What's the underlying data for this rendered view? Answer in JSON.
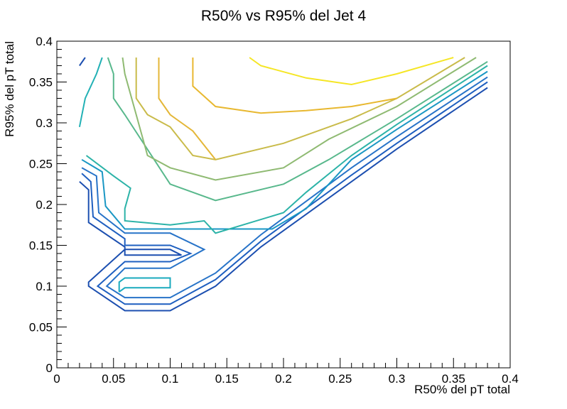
{
  "chart_data": {
    "type": "contour",
    "title": "R50% vs R95% del Jet 4",
    "xlabel": "R50% del pT total",
    "ylabel": "R95% del pT total",
    "xlim": [
      0,
      0.4
    ],
    "ylim": [
      0,
      0.4
    ],
    "x_ticks": [
      "0",
      "0.05",
      "0.1",
      "0.15",
      "0.2",
      "0.25",
      "0.3",
      "0.35",
      "0.4"
    ],
    "y_ticks": [
      "0",
      "0.05",
      "0.1",
      "0.15",
      "0.2",
      "0.25",
      "0.3",
      "0.35",
      "0.4"
    ],
    "grid": false,
    "legend": "none",
    "contours": [
      {
        "color": "#1c4fb0",
        "points": [
          [
            0.02,
            0.37
          ],
          [
            0.025,
            0.38
          ],
          [
            0.02,
            0.37
          ]
        ]
      },
      {
        "color": "#1c4fb0",
        "points": [
          [
            0.02,
            0.228
          ],
          [
            0.028,
            0.218
          ],
          [
            0.028,
            0.178
          ],
          [
            0.06,
            0.148
          ],
          [
            0.06,
            0.138
          ],
          [
            0.1,
            0.138
          ],
          [
            0.11,
            0.138
          ],
          [
            0.1,
            0.145
          ],
          [
            0.06,
            0.145
          ],
          [
            0.028,
            0.105
          ],
          [
            0.028,
            0.1
          ],
          [
            0.06,
            0.07
          ],
          [
            0.1,
            0.07
          ],
          [
            0.14,
            0.1
          ],
          [
            0.18,
            0.148
          ],
          [
            0.26,
            0.228
          ],
          [
            0.3,
            0.268
          ],
          [
            0.38,
            0.343
          ]
        ]
      },
      {
        "color": "#1e5fc0",
        "points": [
          [
            0.022,
            0.238
          ],
          [
            0.03,
            0.228
          ],
          [
            0.032,
            0.185
          ],
          [
            0.06,
            0.158
          ],
          [
            0.06,
            0.15
          ],
          [
            0.1,
            0.15
          ],
          [
            0.118,
            0.14
          ],
          [
            0.1,
            0.13
          ],
          [
            0.06,
            0.13
          ],
          [
            0.036,
            0.1
          ],
          [
            0.06,
            0.078
          ],
          [
            0.1,
            0.078
          ],
          [
            0.14,
            0.108
          ],
          [
            0.18,
            0.155
          ],
          [
            0.26,
            0.236
          ],
          [
            0.3,
            0.275
          ],
          [
            0.38,
            0.35
          ]
        ]
      },
      {
        "color": "#2773c8",
        "points": [
          [
            0.022,
            0.245
          ],
          [
            0.035,
            0.235
          ],
          [
            0.037,
            0.19
          ],
          [
            0.06,
            0.165
          ],
          [
            0.1,
            0.165
          ],
          [
            0.13,
            0.145
          ],
          [
            0.1,
            0.122
          ],
          [
            0.06,
            0.122
          ],
          [
            0.044,
            0.1
          ],
          [
            0.06,
            0.086
          ],
          [
            0.1,
            0.086
          ],
          [
            0.14,
            0.116
          ],
          [
            0.18,
            0.163
          ],
          [
            0.26,
            0.245
          ],
          [
            0.3,
            0.283
          ],
          [
            0.38,
            0.356
          ]
        ]
      },
      {
        "color": "#1a97c4",
        "points": [
          [
            0.022,
            0.255
          ],
          [
            0.04,
            0.24
          ],
          [
            0.043,
            0.198
          ],
          [
            0.06,
            0.17
          ],
          [
            0.1,
            0.17
          ],
          [
            0.14,
            0.17
          ],
          [
            0.19,
            0.17
          ],
          [
            0.22,
            0.195
          ],
          [
            0.26,
            0.255
          ],
          [
            0.3,
            0.292
          ],
          [
            0.38,
            0.363
          ]
        ]
      },
      {
        "color": "#1aaabe",
        "points": [
          [
            0.055,
            0.093
          ],
          [
            0.06,
            0.098
          ],
          [
            0.1,
            0.098
          ],
          [
            0.1,
            0.11
          ],
          [
            0.06,
            0.11
          ],
          [
            0.055,
            0.105
          ],
          [
            0.055,
            0.093
          ]
        ]
      },
      {
        "color": "#22b1b5",
        "points": [
          [
            0.02,
            0.295
          ],
          [
            0.025,
            0.33
          ],
          [
            0.035,
            0.36
          ],
          [
            0.04,
            0.38
          ]
        ]
      },
      {
        "color": "#2cb3a8",
        "points": [
          [
            0.026,
            0.26
          ],
          [
            0.05,
            0.235
          ],
          [
            0.065,
            0.22
          ],
          [
            0.06,
            0.195
          ],
          [
            0.06,
            0.18
          ],
          [
            0.1,
            0.175
          ],
          [
            0.13,
            0.18
          ],
          [
            0.14,
            0.165
          ],
          [
            0.2,
            0.19
          ],
          [
            0.22,
            0.215
          ],
          [
            0.26,
            0.26
          ],
          [
            0.3,
            0.298
          ],
          [
            0.38,
            0.37
          ]
        ]
      },
      {
        "color": "#58b88c",
        "points": [
          [
            0.045,
            0.38
          ],
          [
            0.05,
            0.36
          ],
          [
            0.05,
            0.33
          ],
          [
            0.06,
            0.31
          ],
          [
            0.1,
            0.225
          ],
          [
            0.14,
            0.205
          ],
          [
            0.2,
            0.225
          ],
          [
            0.24,
            0.255
          ],
          [
            0.3,
            0.305
          ],
          [
            0.38,
            0.375
          ]
        ]
      },
      {
        "color": "#8fba72",
        "points": [
          [
            0.058,
            0.38
          ],
          [
            0.06,
            0.36
          ],
          [
            0.07,
            0.31
          ],
          [
            0.08,
            0.26
          ],
          [
            0.1,
            0.245
          ],
          [
            0.14,
            0.23
          ],
          [
            0.2,
            0.245
          ],
          [
            0.24,
            0.28
          ],
          [
            0.3,
            0.32
          ],
          [
            0.37,
            0.38
          ]
        ]
      },
      {
        "color": "#c9bb4a",
        "points": [
          [
            0.07,
            0.38
          ],
          [
            0.07,
            0.33
          ],
          [
            0.08,
            0.31
          ],
          [
            0.1,
            0.295
          ],
          [
            0.12,
            0.26
          ],
          [
            0.14,
            0.255
          ],
          [
            0.2,
            0.275
          ],
          [
            0.26,
            0.305
          ],
          [
            0.3,
            0.33
          ],
          [
            0.36,
            0.38
          ]
        ]
      },
      {
        "color": "#e4b738",
        "points": [
          [
            0.09,
            0.38
          ],
          [
            0.09,
            0.33
          ],
          [
            0.1,
            0.31
          ],
          [
            0.12,
            0.29
          ],
          [
            0.14,
            0.255
          ]
        ]
      },
      {
        "color": "#e8b830",
        "points": [
          [
            0.12,
            0.38
          ],
          [
            0.12,
            0.345
          ],
          [
            0.14,
            0.32
          ],
          [
            0.18,
            0.312
          ],
          [
            0.22,
            0.315
          ],
          [
            0.26,
            0.32
          ],
          [
            0.3,
            0.33
          ]
        ]
      },
      {
        "color": "#f5e625",
        "points": [
          [
            0.17,
            0.38
          ],
          [
            0.18,
            0.37
          ],
          [
            0.22,
            0.355
          ],
          [
            0.26,
            0.347
          ],
          [
            0.3,
            0.36
          ],
          [
            0.35,
            0.38
          ]
        ]
      }
    ]
  }
}
